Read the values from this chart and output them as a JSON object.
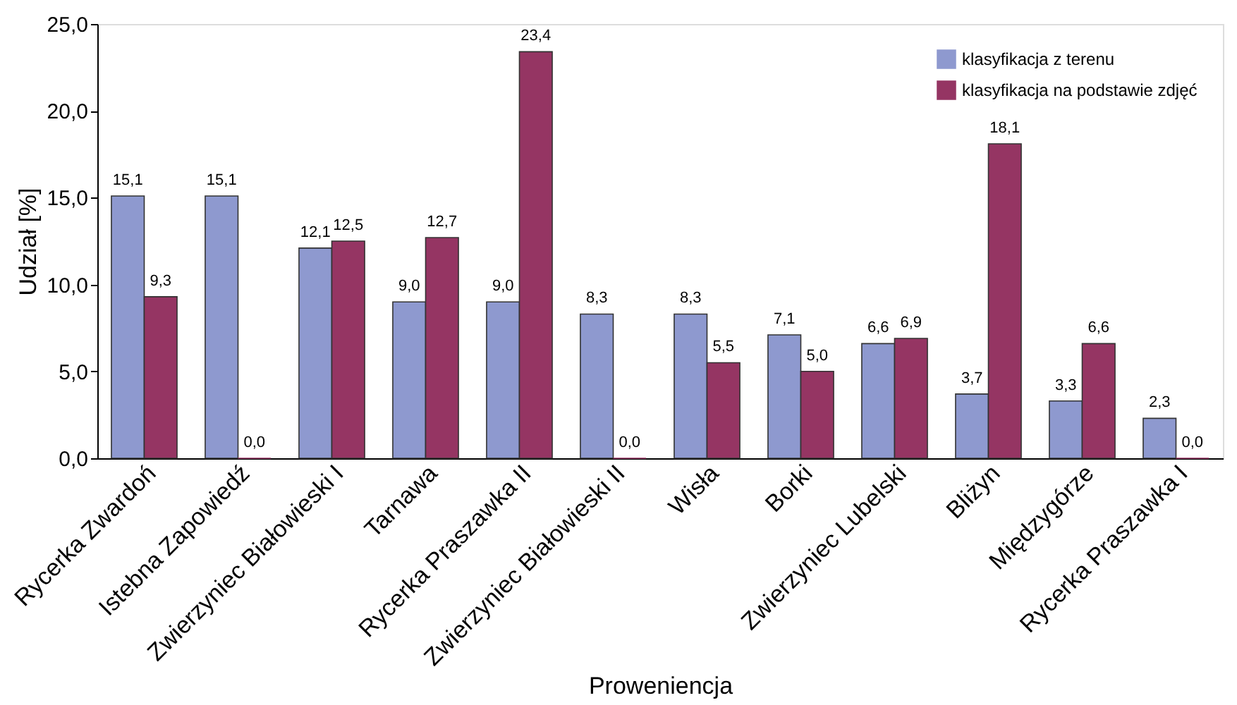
{
  "chart_data": {
    "type": "bar",
    "xlabel": "Proweniencja",
    "ylabel": "Udział [%]",
    "categories": [
      "Rycerka Zwardoń",
      "Istebna Zapowiedź",
      "Zwierzyniec Białowieski I",
      "Tarnawa",
      "Rycerka Praszawka II",
      "Zwierzyniec Białowieski II",
      "Wisła",
      "Borki",
      "Zwierzyniec Lubelski",
      "Bliżyn",
      "Międzygórze",
      "Rycerka Praszawka I"
    ],
    "series": [
      {
        "name": "klasyfikacja z terenu",
        "color": "#8e99cf",
        "values": [
          15.1,
          15.1,
          12.1,
          9.0,
          9.0,
          8.3,
          8.3,
          7.1,
          6.6,
          3.7,
          3.3,
          2.3
        ],
        "value_labels": [
          "15,1",
          "15,1",
          "12,1",
          "9,0",
          "9,0",
          "8,3",
          "8,3",
          "7,1",
          "6,6",
          "3,7",
          "3,3",
          "2,3"
        ]
      },
      {
        "name": "klasyfikacja na podstawie zdjęć",
        "color": "#953563",
        "values": [
          9.3,
          0.0,
          12.5,
          12.7,
          23.4,
          0.0,
          5.5,
          5.0,
          6.9,
          18.1,
          6.6,
          0.0
        ],
        "value_labels": [
          "9,3",
          "0,0",
          "12,5",
          "12,7",
          "23,4",
          "0,0",
          "5,5",
          "5,0",
          "6,9",
          "18,1",
          "6,6",
          "0,0"
        ]
      }
    ],
    "ylim": [
      0,
      25
    ],
    "yticks": [
      {
        "value": 0,
        "label": "0,0"
      },
      {
        "value": 5,
        "label": "5,0"
      },
      {
        "value": 10,
        "label": "10,0"
      },
      {
        "value": 15,
        "label": "15,0"
      },
      {
        "value": 20,
        "label": "20,0"
      },
      {
        "value": 25,
        "label": "25,0"
      }
    ],
    "grid": false,
    "legend": "top right"
  }
}
